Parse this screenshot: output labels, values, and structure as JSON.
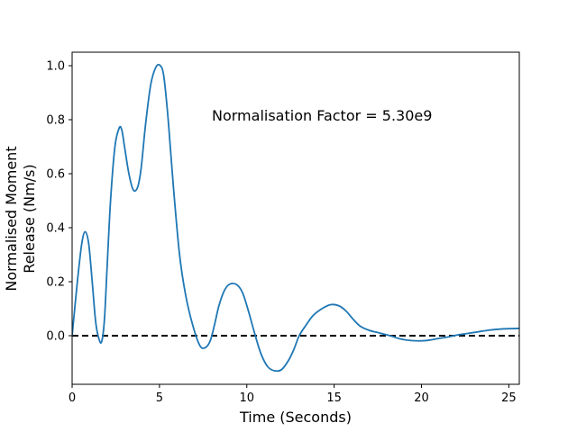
{
  "chart_data": {
    "type": "line",
    "xlabel": "Time (Seconds)",
    "ylabel_lines": [
      "Normalised Moment",
      "Release (Nm/s)"
    ],
    "annotation": "Normalisation Factor = 5.30e9",
    "xlim": [
      0,
      25.6
    ],
    "ylim": [
      -0.18,
      1.05
    ],
    "xticks": [
      0,
      5,
      10,
      15,
      20,
      25
    ],
    "yticks": [
      0.0,
      0.2,
      0.4,
      0.6,
      0.8,
      1.0
    ],
    "xtick_labels": [
      "0",
      "5",
      "10",
      "15",
      "20",
      "25"
    ],
    "ytick_labels": [
      "0.0",
      "0.2",
      "0.4",
      "0.6",
      "0.8",
      "1.0"
    ],
    "grid": false,
    "reference_line": {
      "y": 0.0,
      "style": "dashed",
      "color": "#000000"
    },
    "series": [
      {
        "color": "#1f77b4",
        "x": [
          0,
          0.3,
          0.55,
          0.75,
          0.95,
          1.15,
          1.35,
          1.55,
          1.7,
          1.85,
          2.0,
          2.2,
          2.45,
          2.7,
          2.85,
          3.0,
          3.25,
          3.5,
          3.75,
          3.95,
          4.2,
          4.5,
          4.8,
          5.05,
          5.25,
          5.5,
          5.8,
          6.15,
          6.5,
          6.9,
          7.3,
          7.6,
          7.9,
          8.15,
          8.4,
          8.7,
          9.0,
          9.4,
          9.75,
          10.1,
          10.4,
          10.8,
          11.2,
          11.6,
          12.0,
          12.4,
          12.7,
          13.0,
          13.4,
          13.8,
          14.3,
          14.8,
          15.3,
          15.7,
          16.1,
          16.5,
          17.0,
          17.6,
          18.2,
          18.8,
          19.4,
          20.0,
          20.5,
          21.0,
          21.5,
          22.0,
          22.6,
          23.2,
          23.8,
          24.4,
          25.0,
          25.6
        ],
        "y": [
          0.0,
          0.2,
          0.34,
          0.385,
          0.34,
          0.2,
          0.05,
          -0.015,
          -0.02,
          0.06,
          0.25,
          0.5,
          0.7,
          0.77,
          0.76,
          0.7,
          0.6,
          0.54,
          0.55,
          0.62,
          0.78,
          0.93,
          0.995,
          1.0,
          0.96,
          0.8,
          0.55,
          0.3,
          0.15,
          0.04,
          -0.035,
          -0.045,
          -0.02,
          0.04,
          0.11,
          0.165,
          0.19,
          0.19,
          0.16,
          0.09,
          0.02,
          -0.065,
          -0.115,
          -0.13,
          -0.125,
          -0.09,
          -0.05,
          0.0,
          0.04,
          0.075,
          0.1,
          0.115,
          0.11,
          0.09,
          0.06,
          0.035,
          0.02,
          0.01,
          0.0,
          -0.012,
          -0.018,
          -0.019,
          -0.016,
          -0.01,
          -0.005,
          0.002,
          0.008,
          0.014,
          0.02,
          0.024,
          0.026,
          0.027
        ]
      }
    ]
  }
}
